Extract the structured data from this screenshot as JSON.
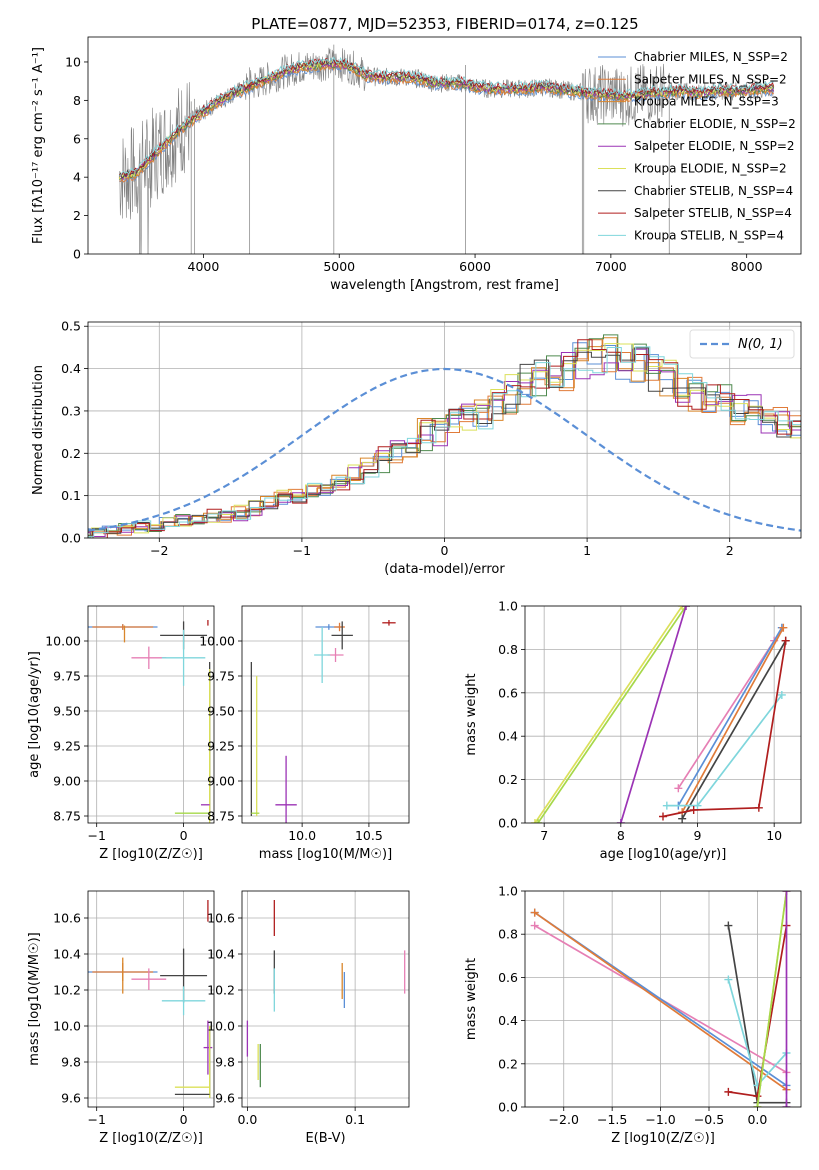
{
  "figure_title": "PLATE=0877, MJD=52353, FIBERID=0174, z=0.125",
  "colors": {
    "Chabrier MILES": "#5b8fd6",
    "Salpeter MILES": "#e07b39",
    "Kroupa MILES": "#d9862b",
    "Chabrier ELODIE": "#4f8a4f",
    "Salpeter ELODIE": "#9b33b5",
    "Kroupa ELODIE": "#dbe05a",
    "Chabrier STELIB": "#444444",
    "Salpeter STELIB": "#b01e1e",
    "Kroupa STELIB": "#7fd6dc",
    "pink": "#e67fb4",
    "lime": "#a6d84a",
    "gray_spectrum": "#808080"
  },
  "chart_data": [
    {
      "id": "spectrum",
      "type": "line",
      "xlabel": "wavelength [Angstrom, rest frame]",
      "ylabel": "Flux [fλ10⁻¹⁷ erg cm⁻² s⁻¹ A⁻¹]",
      "xlim": [
        3150,
        8400
      ],
      "ylim": [
        0,
        11.3
      ],
      "xticks": [
        4000,
        5000,
        6000,
        7000,
        8000
      ],
      "yticks": [
        0,
        2,
        4,
        6,
        8,
        10
      ],
      "grid": false,
      "legend": "right",
      "legend_entries": [
        {
          "label": "Chabrier MILES, N_SSP=2",
          "color": "#5b8fd6"
        },
        {
          "label": "Salpeter MILES, N_SSP=2",
          "color": "#e07b39"
        },
        {
          "label": "Kroupa MILES, N_SSP=3",
          "color": "#d9862b"
        },
        {
          "label": "Chabrier ELODIE, N_SSP=2",
          "color": "#4f8a4f"
        },
        {
          "label": "Salpeter ELODIE, N_SSP=2",
          "color": "#9b33b5"
        },
        {
          "label": "Kroupa ELODIE, N_SSP=2",
          "color": "#dbe05a"
        },
        {
          "label": "Chabrier STELIB, N_SSP=4",
          "color": "#444444"
        },
        {
          "label": "Salpeter STELIB, N_SSP=4",
          "color": "#b01e1e"
        },
        {
          "label": "Kroupa STELIB, N_SSP=4",
          "color": "#7fd6dc"
        }
      ],
      "continuum": {
        "x": [
          3380,
          3500,
          3600,
          3700,
          3800,
          3900,
          4000,
          4100,
          4200,
          4300,
          4400,
          4500,
          4600,
          4700,
          4800,
          4900,
          5000,
          5100,
          5200,
          5300,
          5400,
          5500,
          5600,
          5700,
          5800,
          5900,
          6000,
          6100,
          6200,
          6300,
          6400,
          6500,
          6600,
          6700,
          6800,
          6900,
          7000,
          7100,
          7200,
          7300,
          7400,
          7500,
          7600,
          7700,
          7800,
          7900,
          8000,
          8100,
          8200
        ],
        "y": [
          4.0,
          4.2,
          4.9,
          5.6,
          6.3,
          6.9,
          7.4,
          7.9,
          8.3,
          8.6,
          8.9,
          9.2,
          9.5,
          9.7,
          9.8,
          9.9,
          9.9,
          9.7,
          9.3,
          9.2,
          9.2,
          9.2,
          9.1,
          8.9,
          8.9,
          8.9,
          8.7,
          8.6,
          8.6,
          8.6,
          8.6,
          8.7,
          8.6,
          8.5,
          8.4,
          8.3,
          8.3,
          8.2,
          8.3,
          8.4,
          8.4,
          8.5,
          8.4,
          8.4,
          8.5,
          8.5,
          8.5,
          8.6,
          8.6
        ]
      }
    },
    {
      "id": "residuals",
      "type": "histogram",
      "xlabel": "(data-model)/error",
      "ylabel": "Normed distribution",
      "xlim": [
        -2.5,
        2.5
      ],
      "ylim": [
        0,
        0.51
      ],
      "xticks": [
        -2,
        -1,
        0,
        1,
        2
      ],
      "yticks": [
        0.0,
        0.1,
        0.2,
        0.3,
        0.4,
        0.5
      ],
      "grid": true,
      "legend": "top-right",
      "gaussian_label": "N(0, 1)",
      "bin_width": 0.1,
      "base_values": [
        0.01,
        0.012,
        0.015,
        0.02,
        0.025,
        0.03,
        0.035,
        0.04,
        0.045,
        0.05,
        0.055,
        0.06,
        0.07,
        0.08,
        0.09,
        0.1,
        0.11,
        0.12,
        0.135,
        0.15,
        0.17,
        0.19,
        0.21,
        0.22,
        0.24,
        0.26,
        0.27,
        0.29,
        0.3,
        0.32,
        0.34,
        0.36,
        0.38,
        0.4,
        0.41,
        0.42,
        0.43,
        0.43,
        0.42,
        0.41,
        0.4,
        0.38,
        0.36,
        0.34,
        0.33,
        0.32,
        0.3,
        0.29,
        0.28,
        0.27,
        0.26,
        0.25,
        0.24,
        0.23,
        0.22,
        0.21,
        0.2,
        0.19,
        0.18,
        0.17,
        0.16,
        0.15,
        0.14,
        0.13,
        0.12,
        0.11,
        0.1,
        0.09,
        0.08,
        0.07,
        0.06,
        0.05,
        0.045,
        0.04,
        0.035,
        0.03,
        0.03,
        0.025,
        0.02,
        0.02,
        0.02
      ],
      "series_names": [
        "Chabrier MILES",
        "Salpeter MILES",
        "Kroupa MILES",
        "Chabrier ELODIE",
        "Salpeter ELODIE",
        "Kroupa ELODIE",
        "Chabrier STELIB",
        "Salpeter STELIB",
        "Kroupa STELIB"
      ]
    },
    {
      "id": "age_vs_Z",
      "type": "errorbar",
      "xlabel": "Z [log10(Z/Z☉)]",
      "ylabel": "age  [log10(age/yr)]",
      "xlim": [
        -1.1,
        0.35
      ],
      "ylim": [
        8.7,
        10.25
      ],
      "xticks": [
        -1,
        0
      ],
      "yticks": [
        8.75,
        9.0,
        9.25,
        9.5,
        9.75,
        10.0
      ],
      "grid": true,
      "points": [
        {
          "x": -0.7,
          "y": 10.1,
          "xerr": 0.4,
          "yerr": 0.02,
          "color": "#5b8fd6"
        },
        {
          "x": -0.7,
          "y": 10.1,
          "xerr": 0.35,
          "yerr": 0.02,
          "color": "#e07b39"
        },
        {
          "x": -0.68,
          "y": 10.05,
          "xerr": 0.0,
          "yerr": 0.06,
          "color": "#d9862b"
        },
        {
          "x": -0.4,
          "y": 9.88,
          "xerr": 0.2,
          "yerr": 0.08,
          "color": "#e67fb4"
        },
        {
          "x": 0.0,
          "y": 10.04,
          "xerr": 0.27,
          "yerr": 0.1,
          "color": "#444444"
        },
        {
          "x": 0.0,
          "y": 9.88,
          "xerr": 0.25,
          "yerr": 0.2,
          "color": "#7fd6dc"
        },
        {
          "x": 0.28,
          "y": 10.13,
          "xerr": 0.0,
          "yerr": 0.02,
          "color": "#b01e1e"
        },
        {
          "x": 0.3,
          "y": 9.3,
          "xerr": 0.0,
          "yerr": 0.55,
          "color": "#444444"
        },
        {
          "x": 0.3,
          "y": 9.25,
          "xerr": 0.0,
          "yerr": 0.55,
          "color": "#dbe05a"
        },
        {
          "x": 0.25,
          "y": 8.83,
          "xerr": 0.05,
          "yerr": 0.0,
          "color": "#9b33b5"
        },
        {
          "x": 0.1,
          "y": 8.77,
          "xerr": 0.2,
          "yerr": 0.0,
          "color": "#a6d84a"
        }
      ]
    },
    {
      "id": "age_vs_mass",
      "type": "errorbar",
      "xlabel": "mass [log10(M/M☉)]",
      "ylabel": "",
      "xlim": [
        9.55,
        10.8
      ],
      "ylim": [
        8.7,
        10.25
      ],
      "xticks": [
        10.0,
        10.5
      ],
      "yticks": [
        8.75,
        9.0,
        9.25,
        9.5,
        9.75,
        10.0
      ],
      "grid": true,
      "points": [
        {
          "x": 10.2,
          "y": 10.1,
          "xerr": 0.1,
          "yerr": 0.02,
          "color": "#5b8fd6"
        },
        {
          "x": 10.28,
          "y": 10.1,
          "xerr": 0.04,
          "yerr": 0.03,
          "color": "#e07b39"
        },
        {
          "x": 10.3,
          "y": 10.04,
          "xerr": 0.08,
          "yerr": 0.1,
          "color": "#444444"
        },
        {
          "x": 10.25,
          "y": 9.9,
          "xerr": 0.06,
          "yerr": 0.05,
          "color": "#e67fb4"
        },
        {
          "x": 10.15,
          "y": 9.9,
          "xerr": 0.06,
          "yerr": 0.2,
          "color": "#7fd6dc"
        },
        {
          "x": 10.65,
          "y": 10.13,
          "xerr": 0.05,
          "yerr": 0.02,
          "color": "#b01e1e"
        },
        {
          "x": 9.88,
          "y": 8.83,
          "xerr": 0.08,
          "yerr": 0.35,
          "color": "#9b33b5"
        },
        {
          "x": 9.62,
          "y": 9.3,
          "xerr": 0.0,
          "yerr": 0.55,
          "color": "#444444"
        },
        {
          "x": 9.66,
          "y": 9.25,
          "xerr": 0.0,
          "yerr": 0.5,
          "color": "#dbe05a"
        },
        {
          "x": 9.65,
          "y": 8.77,
          "xerr": 0.03,
          "yerr": 0.0,
          "color": "#a6d84a"
        }
      ]
    },
    {
      "id": "massweight_vs_age",
      "type": "line",
      "xlabel": "age  [log10(age/yr)]",
      "ylabel": "mass weight",
      "xlim": [
        6.75,
        10.35
      ],
      "ylim": [
        0,
        1.0
      ],
      "xticks": [
        7,
        8,
        9,
        10
      ],
      "yticks": [
        0.0,
        0.2,
        0.4,
        0.6,
        0.8,
        1.0
      ],
      "grid": true,
      "series": [
        {
          "color": "#dbe05a",
          "x": [
            6.88,
            8.8
          ],
          "y": [
            0.0,
            1.0
          ]
        },
        {
          "color": "#a6d84a",
          "x": [
            6.92,
            8.85
          ],
          "y": [
            0.0,
            1.0
          ]
        },
        {
          "color": "#9b33b5",
          "x": [
            8.0,
            8.85
          ],
          "y": [
            0.0,
            1.0
          ]
        },
        {
          "color": "#e67fb4",
          "x": [
            8.75,
            10.0
          ],
          "y": [
            0.16,
            0.84
          ]
        },
        {
          "color": "#5b8fd6",
          "x": [
            8.75,
            10.1
          ],
          "y": [
            0.08,
            0.9
          ]
        },
        {
          "color": "#e07b39",
          "x": [
            8.8,
            10.12
          ],
          "y": [
            0.05,
            0.9
          ]
        },
        {
          "color": "#444444",
          "x": [
            8.8,
            10.15
          ],
          "y": [
            0.02,
            0.84
          ]
        },
        {
          "color": "#7fd6dc",
          "x": [
            8.6,
            9.0,
            10.1
          ],
          "y": [
            0.08,
            0.08,
            0.59
          ]
        },
        {
          "color": "#b01e1e",
          "x": [
            8.55,
            8.95,
            9.8,
            10.15
          ],
          "y": [
            0.03,
            0.06,
            0.07,
            0.84
          ]
        }
      ]
    },
    {
      "id": "mass_vs_Z",
      "type": "errorbar",
      "xlabel": "Z [log10(Z/Z☉)]",
      "ylabel": "mass [log10(M/M☉)]",
      "xlim": [
        -1.1,
        0.35
      ],
      "ylim": [
        9.55,
        10.75
      ],
      "xticks": [
        -1,
        0
      ],
      "yticks": [
        9.6,
        9.8,
        10.0,
        10.2,
        10.4,
        10.6
      ],
      "grid": true,
      "points": [
        {
          "x": -0.7,
          "y": 10.3,
          "xerr": 0.4,
          "yerr": 0.05,
          "color": "#5b8fd6"
        },
        {
          "x": -0.7,
          "y": 10.3,
          "xerr": 0.35,
          "yerr": 0.05,
          "color": "#e07b39"
        },
        {
          "x": -0.7,
          "y": 10.28,
          "xerr": 0.0,
          "yerr": 0.1,
          "color": "#d9862b"
        },
        {
          "x": -0.4,
          "y": 10.26,
          "xerr": 0.2,
          "yerr": 0.06,
          "color": "#e67fb4"
        },
        {
          "x": 0.0,
          "y": 10.28,
          "xerr": 0.27,
          "yerr": 0.15,
          "color": "#444444"
        },
        {
          "x": 0.0,
          "y": 10.14,
          "xerr": 0.25,
          "yerr": 0.08,
          "color": "#7fd6dc"
        },
        {
          "x": 0.28,
          "y": 10.64,
          "xerr": 0.0,
          "yerr": 0.06,
          "color": "#b01e1e"
        },
        {
          "x": 0.28,
          "y": 9.88,
          "xerr": 0.05,
          "yerr": 0.15,
          "color": "#9b33b5"
        },
        {
          "x": 0.3,
          "y": 9.8,
          "xerr": 0.0,
          "yerr": 0.2,
          "color": "#444444"
        },
        {
          "x": 0.3,
          "y": 9.8,
          "xerr": 0.0,
          "yerr": 0.2,
          "color": "#dbe05a"
        },
        {
          "x": 0.1,
          "y": 9.66,
          "xerr": 0.2,
          "yerr": 0.0,
          "color": "#dbe05a"
        },
        {
          "x": 0.1,
          "y": 9.62,
          "xerr": 0.2,
          "yerr": 0.0,
          "color": "#444444"
        }
      ]
    },
    {
      "id": "mass_vs_EBV",
      "type": "errorbar",
      "xlabel": "E(B-V)",
      "ylabel": "",
      "xlim": [
        -0.005,
        0.15
      ],
      "ylim": [
        9.55,
        10.75
      ],
      "xticks": [
        0.0,
        0.1
      ],
      "yticks": [
        9.6,
        9.8,
        10.0,
        10.2,
        10.4,
        10.6
      ],
      "grid": true,
      "points": [
        {
          "x": 0.025,
          "y": 10.6,
          "xerr": 0.0,
          "yerr": 0.1,
          "color": "#b01e1e"
        },
        {
          "x": 0.025,
          "y": 10.3,
          "xerr": 0.0,
          "yerr": 0.12,
          "color": "#444444"
        },
        {
          "x": 0.025,
          "y": 10.2,
          "xerr": 0.0,
          "yerr": 0.12,
          "color": "#7fd6dc"
        },
        {
          "x": 0.088,
          "y": 10.25,
          "xerr": 0.0,
          "yerr": 0.1,
          "color": "#d9862b"
        },
        {
          "x": 0.09,
          "y": 10.2,
          "xerr": 0.0,
          "yerr": 0.1,
          "color": "#5b8fd6"
        },
        {
          "x": 0.146,
          "y": 10.3,
          "xerr": 0.0,
          "yerr": 0.12,
          "color": "#e67fb4"
        },
        {
          "x": 0.0,
          "y": 9.93,
          "xerr": 0.0,
          "yerr": 0.1,
          "color": "#9b33b5"
        },
        {
          "x": 0.01,
          "y": 9.8,
          "xerr": 0.0,
          "yerr": 0.1,
          "color": "#dbe05a"
        },
        {
          "x": 0.012,
          "y": 9.78,
          "xerr": 0.0,
          "yerr": 0.12,
          "color": "#4f8a4f"
        }
      ]
    },
    {
      "id": "massweight_vs_Z",
      "type": "line",
      "xlabel": "Z [log10(Z/Z☉)]",
      "ylabel": "mass weight",
      "xlim": [
        -2.4,
        0.45
      ],
      "ylim": [
        0,
        1.0
      ],
      "xticks": [
        -2.0,
        -1.5,
        -1.0,
        -0.5,
        0.0
      ],
      "yticks": [
        0.0,
        0.2,
        0.4,
        0.6,
        0.8,
        1.0
      ],
      "grid": true,
      "series": [
        {
          "color": "#e67fb4",
          "x": [
            -2.3,
            0.3
          ],
          "y": [
            0.84,
            0.16
          ]
        },
        {
          "color": "#5b8fd6",
          "x": [
            -2.3,
            0.3
          ],
          "y": [
            0.9,
            0.1
          ]
        },
        {
          "color": "#e07b39",
          "x": [
            -2.3,
            0.3
          ],
          "y": [
            0.9,
            0.08
          ]
        },
        {
          "color": "#444444",
          "x": [
            -0.3,
            0.0,
            0.3
          ],
          "y": [
            0.84,
            0.02,
            0.02
          ]
        },
        {
          "color": "#7fd6dc",
          "x": [
            -0.3,
            0.0,
            0.3
          ],
          "y": [
            0.59,
            0.1,
            0.25
          ]
        },
        {
          "color": "#b01e1e",
          "x": [
            -0.3,
            0.0,
            0.3
          ],
          "y": [
            0.07,
            0.05,
            0.84
          ]
        },
        {
          "color": "#dbe05a",
          "x": [
            0.0,
            0.3
          ],
          "y": [
            0.0,
            1.0
          ]
        },
        {
          "color": "#a6d84a",
          "x": [
            0.0,
            0.3
          ],
          "y": [
            0.0,
            1.0
          ]
        },
        {
          "color": "#9b33b5",
          "x": [
            0.3,
            0.3
          ],
          "y": [
            0.0,
            1.0
          ]
        }
      ]
    }
  ]
}
